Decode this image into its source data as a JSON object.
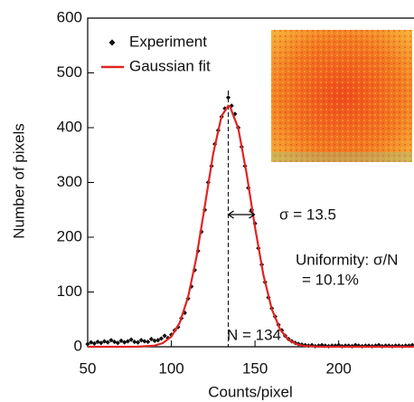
{
  "chart_data": {
    "type": "scatter",
    "x_label": "Counts/pixel",
    "y_label": "Number of pixels",
    "xlim": [
      50,
      245
    ],
    "ylim": [
      0,
      600
    ],
    "xticks": [
      50,
      100,
      150,
      200
    ],
    "yticks": [
      0,
      100,
      200,
      300,
      400,
      500,
      600
    ],
    "legend": "upper left",
    "series": [
      {
        "name": "Experiment",
        "type": "scatter",
        "color": "#111111",
        "x": [
          50,
          52,
          54,
          56,
          58,
          60,
          62,
          64,
          66,
          68,
          70,
          72,
          74,
          76,
          78,
          80,
          82,
          84,
          86,
          88,
          90,
          92,
          94,
          96,
          98,
          100,
          102,
          104,
          106,
          108,
          110,
          112,
          114,
          116,
          118,
          120,
          122,
          124,
          126,
          128,
          130,
          132,
          134,
          136,
          138,
          140,
          142,
          144,
          146,
          148,
          150,
          152,
          154,
          156,
          158,
          160,
          162,
          164,
          166,
          168,
          170,
          172,
          174,
          176,
          178,
          180,
          182,
          184,
          186,
          188,
          190,
          192,
          194,
          196,
          198,
          200,
          202,
          204,
          206,
          208,
          210,
          212,
          214,
          216,
          218,
          220,
          222,
          224,
          226,
          228,
          230,
          232,
          234,
          236,
          238,
          240,
          242,
          244
        ],
        "values": [
          5,
          8,
          6,
          9,
          7,
          10,
          8,
          12,
          9,
          7,
          11,
          8,
          10,
          13,
          9,
          8,
          12,
          10,
          9,
          14,
          11,
          12,
          15,
          20,
          16,
          22,
          30,
          36,
          52,
          62,
          88,
          110,
          140,
          175,
          210,
          250,
          300,
          330,
          370,
          395,
          420,
          435,
          455,
          440,
          425,
          400,
          365,
          330,
          290,
          250,
          225,
          180,
          150,
          118,
          90,
          70,
          55,
          40,
          30,
          20,
          14,
          10,
          7,
          5,
          4,
          3,
          2,
          3,
          1,
          2,
          3,
          2,
          1,
          2,
          2,
          3,
          1,
          2,
          2,
          1,
          3,
          2,
          1,
          2,
          2,
          1,
          2,
          3,
          1,
          2,
          2,
          1,
          2,
          2,
          1,
          2,
          2,
          3
        ]
      },
      {
        "name": "Gaussian fit",
        "type": "line",
        "color": "#e02424",
        "x": [
          50,
          60,
          70,
          80,
          90,
          95,
          100,
          105,
          110,
          115,
          120,
          125,
          130,
          134,
          135,
          140,
          145,
          150,
          155,
          160,
          165,
          170,
          175,
          180,
          190,
          200,
          245
        ],
        "values": [
          0,
          0,
          0,
          0.2,
          2.2,
          6.8,
          18.5,
          43.8,
          90.7,
          163.5,
          256.9,
          352.4,
          421.1,
          440,
          438.8,
          398.6,
          315.7,
          218.0,
          131.2,
          68.9,
          31.5,
          12.6,
          4.4,
          1.3,
          0,
          0,
          0
        ]
      }
    ],
    "reference_lines": [
      {
        "x": 134
      }
    ],
    "annotations": [
      "σ = 13.5",
      "Uniformity: σ/N",
      " = 10.1%",
      "N = 134"
    ]
  }
}
